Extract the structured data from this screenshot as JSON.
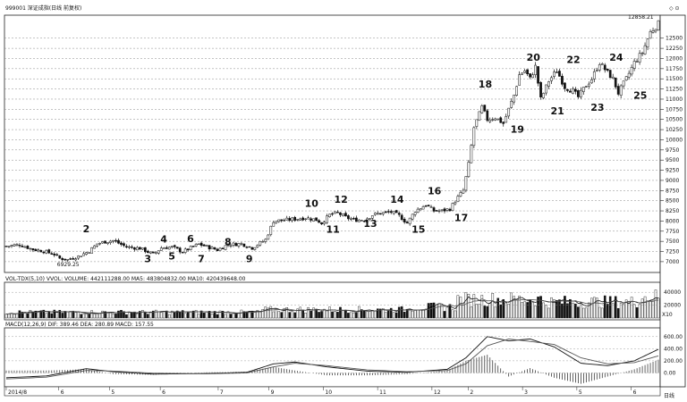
{
  "chart_data": {
    "type": "candlestick",
    "title": "999001 深证成指(日线 前复权)",
    "price_axis": {
      "ylim": [
        6800,
        13000
      ],
      "tick_labels": [
        "7000",
        "7250",
        "7500",
        "7750",
        "8000",
        "8250",
        "8500",
        "8750",
        "9000",
        "9250",
        "9500",
        "9750",
        "10000",
        "10250",
        "10500",
        "10750",
        "11000",
        "11250",
        "11500",
        "11750",
        "12000",
        "12250",
        "12500"
      ]
    },
    "high_label": "12858.21",
    "low_label": "6929.25",
    "price_path": [
      [
        0,
        7380
      ],
      [
        5,
        7420
      ],
      [
        10,
        7300
      ],
      [
        14,
        7260
      ],
      [
        18,
        7180
      ],
      [
        20,
        7080
      ],
      [
        23,
        7050
      ],
      [
        27,
        7130
      ],
      [
        31,
        7260
      ],
      [
        34,
        7440
      ],
      [
        37,
        7490
      ],
      [
        40,
        7520
      ],
      [
        45,
        7360
      ],
      [
        50,
        7330
      ],
      [
        55,
        7180
      ],
      [
        58,
        7340
      ],
      [
        62,
        7360
      ],
      [
        66,
        7240
      ],
      [
        69,
        7340
      ],
      [
        72,
        7430
      ],
      [
        76,
        7350
      ],
      [
        79,
        7290
      ],
      [
        83,
        7420
      ],
      [
        88,
        7440
      ],
      [
        92,
        7340
      ],
      [
        97,
        7540
      ],
      [
        100,
        8000
      ],
      [
        104,
        8020
      ],
      [
        108,
        8050
      ],
      [
        112,
        8080
      ],
      [
        116,
        8030
      ],
      [
        118,
        7950
      ],
      [
        121,
        8150
      ],
      [
        124,
        8200
      ],
      [
        127,
        8090
      ],
      [
        130,
        8030
      ],
      [
        134,
        8030
      ],
      [
        137,
        8150
      ],
      [
        140,
        8190
      ],
      [
        144,
        8220
      ],
      [
        147,
        8130
      ],
      [
        150,
        7950
      ],
      [
        153,
        8250
      ],
      [
        157,
        8400
      ],
      [
        160,
        8250
      ],
      [
        163,
        8250
      ],
      [
        166,
        8300
      ],
      [
        168,
        8500
      ],
      [
        171,
        8750
      ],
      [
        173,
        9400
      ],
      [
        175,
        10300
      ],
      [
        178,
        10800
      ],
      [
        180,
        10500
      ],
      [
        183,
        10550
      ],
      [
        186,
        10400
      ],
      [
        188,
        10750
      ],
      [
        190,
        11100
      ],
      [
        192,
        11600
      ],
      [
        194,
        11700
      ],
      [
        196,
        11500
      ],
      [
        198,
        11800
      ],
      [
        200,
        11000
      ],
      [
        203,
        11450
      ],
      [
        206,
        11700
      ],
      [
        209,
        11300
      ],
      [
        212,
        11200
      ],
      [
        214,
        11050
      ],
      [
        216,
        11250
      ],
      [
        219,
        11500
      ],
      [
        222,
        11900
      ],
      [
        225,
        11650
      ],
      [
        227,
        11500
      ],
      [
        229,
        11150
      ],
      [
        232,
        11500
      ],
      [
        235,
        11900
      ],
      [
        238,
        12150
      ],
      [
        241,
        12650
      ],
      [
        244,
        12858
      ]
    ],
    "wave_labels": [
      {
        "text": "2",
        "x": 30,
        "price": 7720
      },
      {
        "text": "3",
        "x": 53,
        "price": 6990
      },
      {
        "text": "4",
        "x": 59,
        "price": 7470
      },
      {
        "text": "5",
        "x": 62,
        "price": 7050
      },
      {
        "text": "6",
        "x": 69,
        "price": 7480
      },
      {
        "text": "7",
        "x": 73,
        "price": 6990
      },
      {
        "text": "8",
        "x": 83,
        "price": 7410
      },
      {
        "text": "9",
        "x": 91,
        "price": 6990
      },
      {
        "text": "10",
        "x": 113,
        "price": 8350
      },
      {
        "text": "11",
        "x": 121,
        "price": 7710
      },
      {
        "text": "12",
        "x": 124,
        "price": 8450
      },
      {
        "text": "13",
        "x": 135,
        "price": 7850
      },
      {
        "text": "14",
        "x": 145,
        "price": 8450
      },
      {
        "text": "15",
        "x": 153,
        "price": 7710
      },
      {
        "text": "16",
        "x": 159,
        "price": 8660
      },
      {
        "text": "17",
        "x": 169,
        "price": 8000
      },
      {
        "text": "18",
        "x": 178,
        "price": 11290
      },
      {
        "text": "19",
        "x": 190,
        "price": 10170
      },
      {
        "text": "20",
        "x": 196,
        "price": 11950
      },
      {
        "text": "21",
        "x": 205,
        "price": 10630
      },
      {
        "text": "22",
        "x": 211,
        "price": 11890
      },
      {
        "text": "23",
        "x": 220,
        "price": 10710
      },
      {
        "text": "24",
        "x": 227,
        "price": 11940
      },
      {
        "text": "25",
        "x": 236,
        "price": 11010
      }
    ],
    "volume": {
      "header": "VOL-TDX(5,10)  VVOL:  VOLUME: 442111288.00  MA5: 483804832.00  MA10: 420439648.00",
      "ylim": [
        0,
        50000
      ],
      "tick_labels": [
        "20000",
        "40000"
      ],
      "unit": "X10"
    },
    "macd": {
      "header": "MACD(12,26,9)  DIF: 389.46  DEA: 280.89  MACD: 157.55",
      "ylim": [
        -200,
        700
      ],
      "tick_labels": [
        "600.00",
        "400.00",
        "200.00",
        "0.00"
      ],
      "dif_path": [
        [
          0,
          -80
        ],
        [
          15,
          -50
        ],
        [
          30,
          70
        ],
        [
          40,
          20
        ],
        [
          55,
          -20
        ],
        [
          75,
          -10
        ],
        [
          90,
          10
        ],
        [
          100,
          150
        ],
        [
          108,
          180
        ],
        [
          120,
          100
        ],
        [
          135,
          30
        ],
        [
          150,
          10
        ],
        [
          165,
          60
        ],
        [
          172,
          250
        ],
        [
          180,
          600
        ],
        [
          188,
          530
        ],
        [
          196,
          560
        ],
        [
          205,
          430
        ],
        [
          215,
          160
        ],
        [
          225,
          120
        ],
        [
          235,
          200
        ],
        [
          244,
          390
        ]
      ],
      "dea_path": [
        [
          0,
          -100
        ],
        [
          15,
          -70
        ],
        [
          30,
          40
        ],
        [
          40,
          30
        ],
        [
          55,
          -5
        ],
        [
          75,
          -15
        ],
        [
          90,
          0
        ],
        [
          100,
          100
        ],
        [
          108,
          160
        ],
        [
          120,
          120
        ],
        [
          135,
          50
        ],
        [
          150,
          20
        ],
        [
          165,
          40
        ],
        [
          172,
          150
        ],
        [
          180,
          450
        ],
        [
          188,
          560
        ],
        [
          196,
          520
        ],
        [
          205,
          470
        ],
        [
          215,
          250
        ],
        [
          225,
          150
        ],
        [
          235,
          170
        ],
        [
          244,
          281
        ]
      ]
    },
    "date_labels": [
      {
        "x": 0,
        "text": "2014/8"
      },
      {
        "x": 29,
        "text": "6"
      },
      {
        "x": 57,
        "text": "5"
      },
      {
        "x": 85,
        "text": "6"
      },
      {
        "x": 117,
        "text": "7"
      },
      {
        "x": 145,
        "text": "9"
      },
      {
        "x": 175,
        "text": "10"
      },
      {
        "x": 205,
        "text": "11"
      },
      {
        "x": 235,
        "text": "12"
      },
      {
        "x": 255,
        "text": "2"
      },
      {
        "x": 285,
        "text": "3"
      },
      {
        "x": 315,
        "text": "5"
      },
      {
        "x": 345,
        "text": "6"
      }
    ],
    "period_label": "日线",
    "corner_icons": "◇ ⊙"
  }
}
